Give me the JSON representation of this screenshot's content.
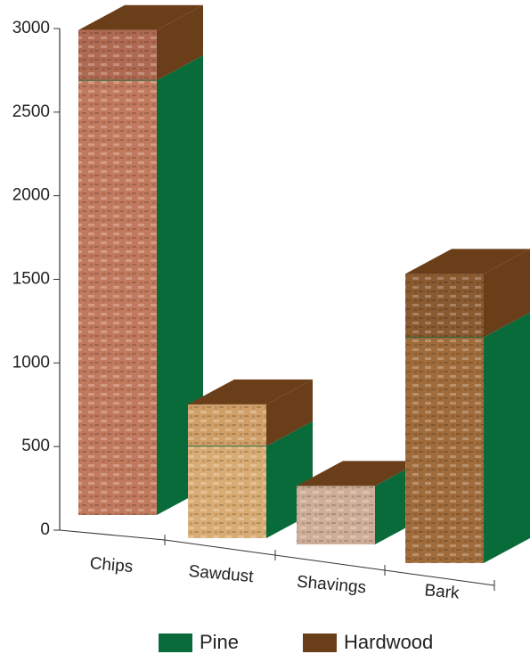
{
  "chart_data": {
    "type": "bar3d_stacked",
    "categories": [
      "Chips",
      "Sawdust",
      "Shavings",
      "Bark"
    ],
    "series": [
      {
        "name": "Pine",
        "color": "#0a6b3a",
        "values": [
          2600,
          550,
          350,
          1350
        ]
      },
      {
        "name": "Hardwood",
        "color": "#6b3e1a",
        "values": [
          300,
          250,
          0,
          380
        ]
      }
    ],
    "ylim": [
      0,
      3000
    ],
    "yticks": [
      0,
      500,
      1000,
      1500,
      2000,
      2500,
      3000
    ]
  }
}
